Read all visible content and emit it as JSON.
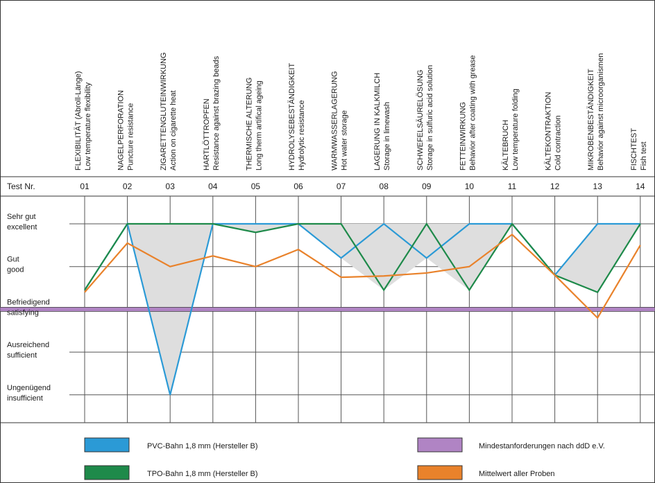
{
  "chart_data": {
    "type": "line",
    "categories": [
      {
        "test_nr": "01",
        "de": "FLEXIBILITÄT (Abroll-Länge)",
        "en": "Low temperature flexibility"
      },
      {
        "test_nr": "02",
        "de": "NAGELPERFORATION",
        "en": "Puncture resistance"
      },
      {
        "test_nr": "03",
        "de": "ZIGARETTENGLUTEINWIRKUNG",
        "en": "Action on cigarette heat"
      },
      {
        "test_nr": "04",
        "de": "HARTLÖTTROPFEN",
        "en": "Resistance against brazing beads"
      },
      {
        "test_nr": "05",
        "de": "THERMISCHE ALTERUNG",
        "en": "Long therm artifical ageing"
      },
      {
        "test_nr": "06",
        "de": "HYDROLYSEBESTÄNDIGKEIT",
        "en": "Hydrolytic resistance"
      },
      {
        "test_nr": "07",
        "de": "WARMWASSERLAGERUNG",
        "en": "Hot water storage"
      },
      {
        "test_nr": "08",
        "de": "LAGERUNG IN KALKMILCH",
        "en": "Storage in limewash"
      },
      {
        "test_nr": "09",
        "de": "SCHWEFELSÄURELÖSUNG",
        "en": "Storage in sulfuric acid solution"
      },
      {
        "test_nr": "10",
        "de": "FETTEINWIRKUNG",
        "en": "Behavior after coating with grease"
      },
      {
        "test_nr": "11",
        "de": "KÄLTEBRUCH",
        "en": "Low temperature folding"
      },
      {
        "test_nr": "12",
        "de": "KÄLTEKONTRAKTION",
        "en": "Cold contraction"
      },
      {
        "test_nr": "13",
        "de": "MIKROBENBESTÄNDIGKEIT",
        "en": "Behavior against microorganismen"
      },
      {
        "test_nr": "14",
        "de": "FISCHTEST",
        "en": "Fish test"
      }
    ],
    "test_nr_label": "Test Nr.",
    "y_levels": [
      {
        "de": "Sehr gut",
        "en": "excellent",
        "value": 5
      },
      {
        "de": "Gut",
        "en": "good",
        "value": 4
      },
      {
        "de": "Befriedigend",
        "en": "satisfying",
        "value": 3
      },
      {
        "de": "Ausreichend",
        "en": "sufficient",
        "value": 2
      },
      {
        "de": "Ungenügend",
        "en": "insufficient",
        "value": 1
      }
    ],
    "ylim": [
      0.4,
      5.5
    ],
    "grid": true,
    "series": [
      {
        "name": "PVC-Bahn 1,8 mm (Hersteller B)",
        "color": "#2b9ad6",
        "values": [
          3.45,
          5.0,
          1.0,
          5.0,
          5.0,
          5.0,
          4.2,
          5.0,
          4.2,
          5.0,
          5.0,
          3.8,
          5.0,
          5.0
        ]
      },
      {
        "name": "TPO-Bahn 1,8 mm (Hersteller B)",
        "color": "#1e8a4a",
        "values": [
          3.45,
          5.0,
          5.0,
          5.0,
          4.8,
          5.0,
          5.0,
          3.45,
          5.0,
          3.45,
          5.0,
          3.8,
          3.4,
          5.0
        ]
      },
      {
        "name": "Mittelwert aller Proben",
        "color": "#e9822b",
        "values": [
          3.4,
          4.55,
          4.0,
          4.25,
          4.0,
          4.4,
          3.75,
          3.78,
          3.85,
          4.0,
          4.75,
          3.8,
          2.8,
          4.5
        ]
      }
    ],
    "threshold": {
      "name": "Mindestanforderungen nach ddD e.V.",
      "color": "#b084c4",
      "value": 3.0
    },
    "fill_color": "#dedede",
    "legend_position": "bottom"
  }
}
